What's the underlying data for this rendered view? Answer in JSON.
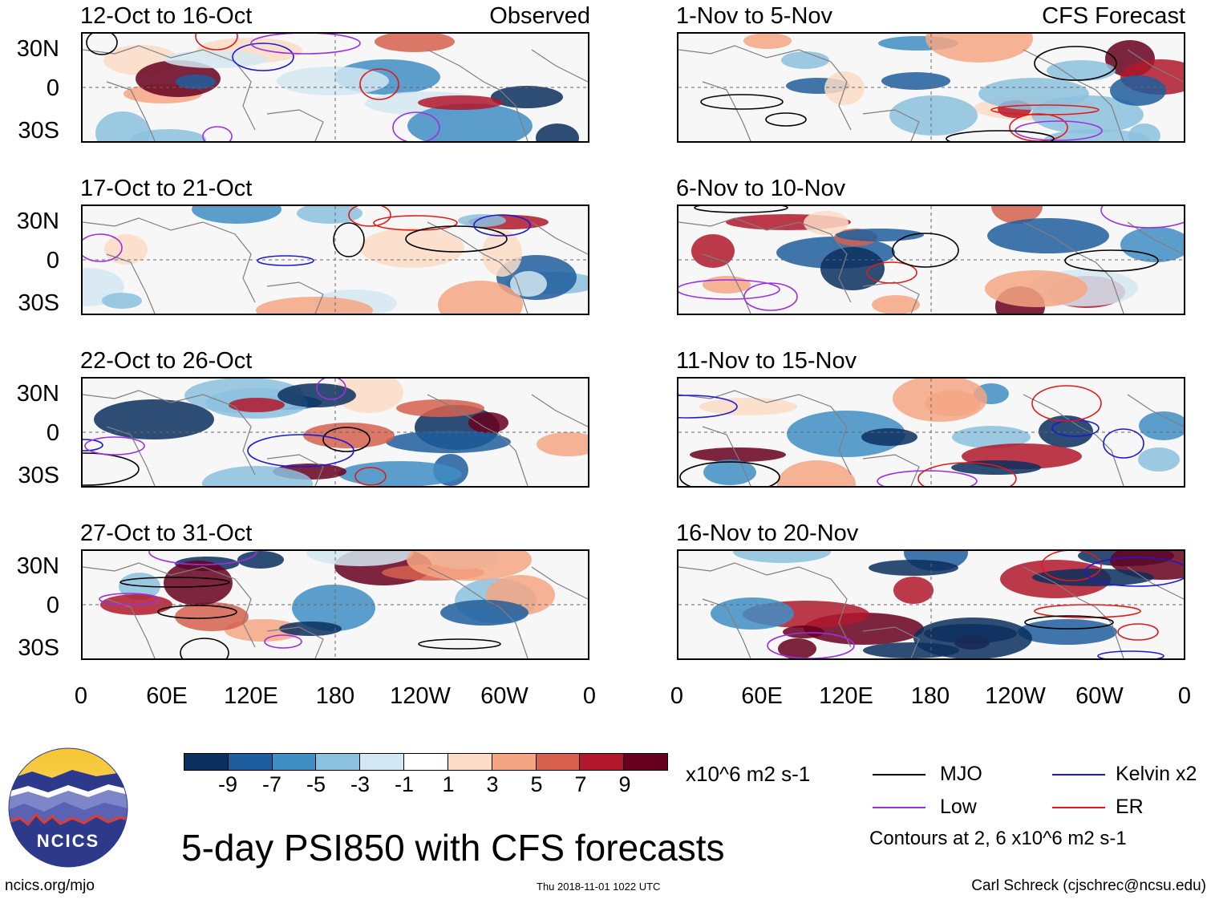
{
  "header": {
    "observed_label": "Observed",
    "forecast_label": "CFS Forecast"
  },
  "panels": {
    "observed": [
      {
        "title": "12-Oct to 16-Oct"
      },
      {
        "title": "17-Oct to 21-Oct"
      },
      {
        "title": "22-Oct to 26-Oct"
      },
      {
        "title": "27-Oct to 31-Oct"
      }
    ],
    "forecast": [
      {
        "title": "1-Nov to 5-Nov"
      },
      {
        "title": "6-Nov to 10-Nov"
      },
      {
        "title": "11-Nov to 15-Nov"
      },
      {
        "title": "16-Nov to 20-Nov"
      }
    ]
  },
  "axes": {
    "lat_labels": [
      "30N",
      "0",
      "30S"
    ],
    "lon_labels": [
      "0",
      "60E",
      "120E",
      "180",
      "120W",
      "60W",
      "0"
    ]
  },
  "colorbar": {
    "colors": [
      "#0b2f5e",
      "#1f5e9e",
      "#3f8ec4",
      "#8cc1de",
      "#d3e8f2",
      "#ffffff",
      "#fcdcc6",
      "#f4a682",
      "#d6604d",
      "#b2182b",
      "#67001f"
    ],
    "tick_labels": [
      "-9",
      "-7",
      "-5",
      "-3",
      "-1",
      "1",
      "3",
      "5",
      "7",
      "9"
    ],
    "units": "x10^6 m2 s-1"
  },
  "legend": {
    "items": [
      {
        "label": "MJO",
        "color": "#000000"
      },
      {
        "label": "Kelvin x2",
        "color": "#1a1ad6"
      },
      {
        "label": "Low",
        "color": "#9b30e0"
      },
      {
        "label": "ER",
        "color": "#e01a1a"
      }
    ],
    "contours_note": "Contours at 2, 6 x10^6 m2 s-1"
  },
  "title": "5-day PSI850 with CFS forecasts",
  "logo": {
    "text": "NCICS"
  },
  "footer": {
    "url": "ncics.org/mjo",
    "timestamp": "Thu 2018-11-01 1022 UTC",
    "author": "Carl Schreck (cjschrec@ncsu.edu)"
  }
}
